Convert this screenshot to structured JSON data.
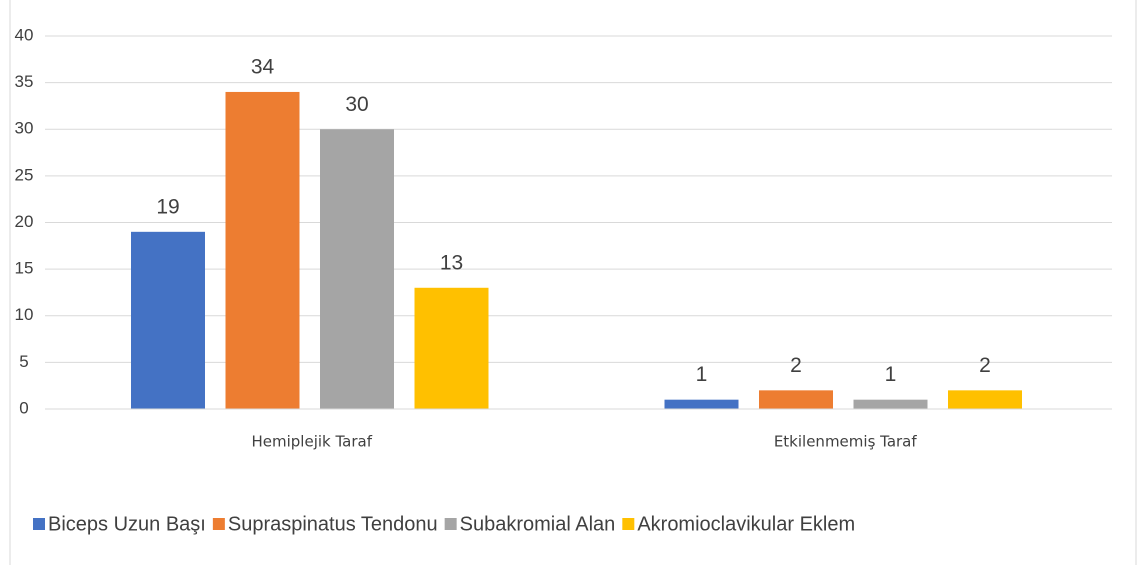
{
  "chart_data": {
    "type": "bar",
    "categories": [
      "Hemiplejik Taraf",
      "Etkilenmemiş Taraf"
    ],
    "series": [
      {
        "name": "Biceps Uzun Başı",
        "color": "#4472c4",
        "values": [
          19,
          1
        ]
      },
      {
        "name": "Supraspinatus Tendonu",
        "color": "#ed7d31",
        "values": [
          34,
          2
        ]
      },
      {
        "name": "Subakromial Alan",
        "color": "#a5a5a5",
        "values": [
          30,
          1
        ]
      },
      {
        "name": "Akromioclavikular Eklem",
        "color": "#ffc000",
        "values": [
          13,
          2
        ]
      }
    ],
    "ylim": [
      0,
      40
    ],
    "yticks": [
      0,
      5,
      10,
      15,
      20,
      25,
      30,
      35,
      40
    ],
    "grid": true,
    "legend": "bottom",
    "data_labels": true
  }
}
